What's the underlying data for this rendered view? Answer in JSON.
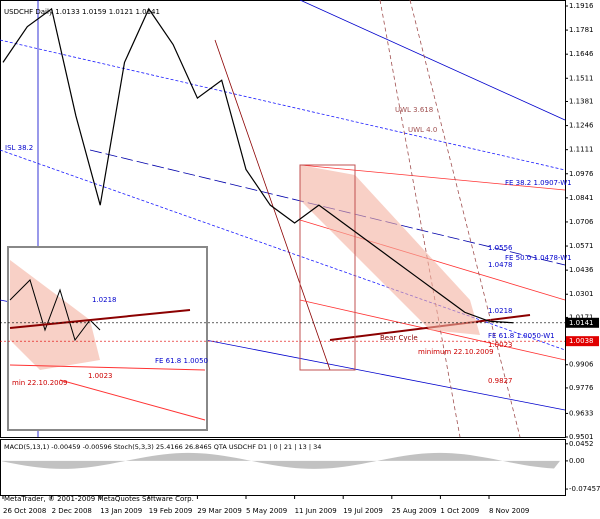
{
  "chart_data": {
    "type": "line",
    "title": "USDCHF Daily 1.0133 1.0159 1.0121 1.0141",
    "categories": [
      "26 Oct 2008",
      null,
      "2 Dec 2008",
      null,
      "13 Jan 2009",
      null,
      "19 Feb 2009",
      null,
      "29 Mar 2009",
      null,
      "5 May 2009",
      null,
      "11 Jun 2009",
      null,
      "19 Jul 2009",
      null,
      "25 Aug 2009",
      null,
      "1 Oct 2009",
      null,
      "8 Nov 2009",
      null
    ],
    "values": [
      1.16,
      1.18,
      1.19,
      1.13,
      1.08,
      1.16,
      1.19,
      1.17,
      1.14,
      1.15,
      1.1,
      1.08,
      1.07,
      1.08,
      1.07,
      1.06,
      1.05,
      1.04,
      1.03,
      1.02,
      1.015,
      1.0141
    ],
    "color": "#000000",
    "ylim": [
      0.9501,
      1.1916
    ],
    "yticks": [
      1.1916,
      1.1781,
      1.1646,
      1.1511,
      1.1381,
      1.1246,
      1.1111,
      1.0976,
      1.0841,
      1.0706,
      1.0571,
      1.0436,
      1.0301,
      1.0171,
      0.9906,
      0.9776,
      0.9633,
      0.9501
    ],
    "current_price": 1.0141,
    "marker_price": 1.0038,
    "annotations": [
      "FE 38.2 1.0907-W1",
      "FE 50.0 1.0478-W1",
      "FE 61.8 1.0050-W1",
      "minimum 22.10.2009",
      "1.0556",
      "1.0478",
      "1.0218",
      "1.0023",
      "0.9827",
      "UWL 3.618",
      "UWL 4.0",
      "ISL 38.2",
      "Bear Cycle",
      "FE 61.8 1.0050",
      "min 22.10.2009",
      "1.0218",
      "1.0023"
    ]
  },
  "macd_panel": {
    "header": "MACD(5,13,1) -0.00459 -0.00596 Stoch(5,3,3) 25.4166 26.8465 QTA USDCHF D1 | 0 | 21 | 13 | 34",
    "ylim": [
      -0.085,
      0.05
    ],
    "yticks": [
      0.0452,
      {
        "value": 0,
        "label": "0.00"
      },
      -0.07457
    ]
  },
  "footer": "MetaTrader, © 2001-2009 MetaQuotes Software Corp."
}
